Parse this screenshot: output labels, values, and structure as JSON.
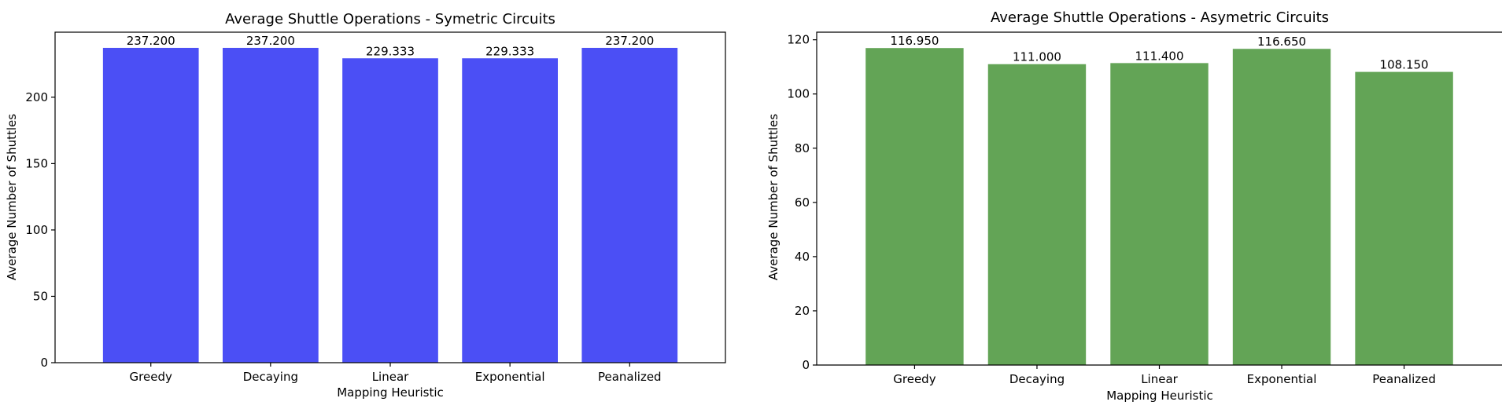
{
  "chart_data": [
    {
      "type": "bar",
      "title": "Average Shuttle Operations - Symetric Circuits",
      "xlabel": "Mapping Heuristic",
      "ylabel": "Average Number of Shuttles",
      "categories": [
        "Greedy",
        "Decaying",
        "Linear",
        "Exponential",
        "Peanalized"
      ],
      "values": [
        237.2,
        237.2,
        229.333,
        229.333,
        237.2
      ],
      "value_labels": [
        "237.200",
        "237.200",
        "229.333",
        "229.333",
        "237.200"
      ],
      "ylim": [
        0,
        249
      ],
      "yticks": [
        0,
        50,
        100,
        150,
        200
      ],
      "color": "#4b4ff5",
      "grid": false
    },
    {
      "type": "bar",
      "title": "Average Shuttle Operations - Asymetric Circuits",
      "xlabel": "Mapping Heuristic",
      "ylabel": "Average Number of Shuttles",
      "categories": [
        "Greedy",
        "Decaying",
        "Linear",
        "Exponential",
        "Peanalized"
      ],
      "values": [
        116.95,
        111.0,
        111.4,
        116.65,
        108.15
      ],
      "value_labels": [
        "116.950",
        "111.000",
        "111.400",
        "116.650",
        "108.150"
      ],
      "ylim": [
        0,
        122.8
      ],
      "yticks": [
        0,
        20,
        40,
        60,
        80,
        100,
        120
      ],
      "color": "#63a456",
      "grid": false
    }
  ]
}
